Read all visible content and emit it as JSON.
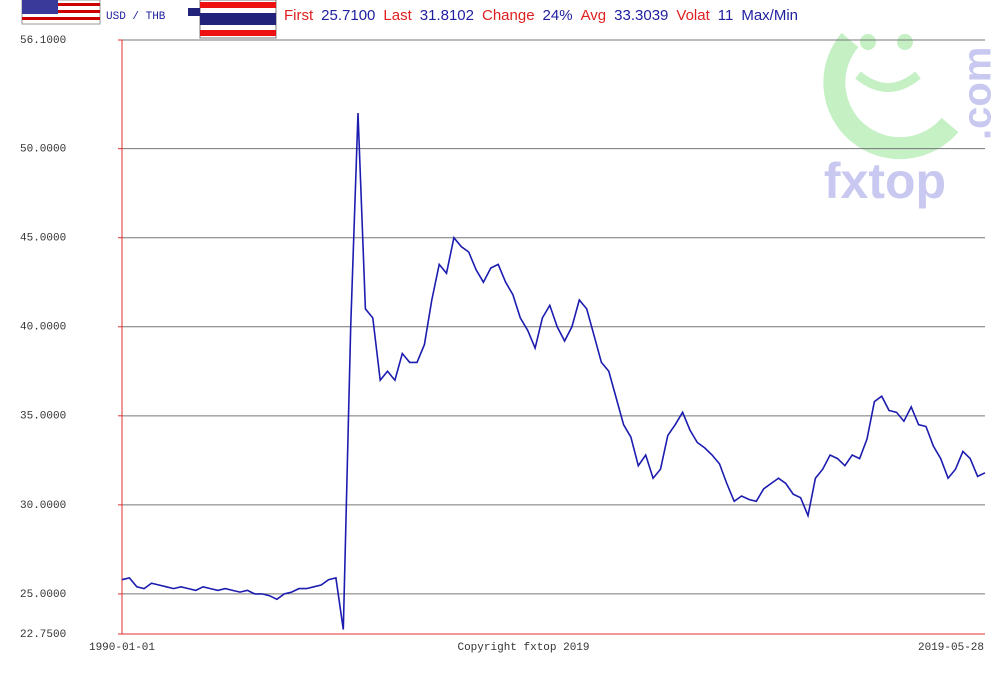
{
  "chart_data": {
    "type": "line",
    "title": "USD / THB",
    "stats": [
      {
        "label": "First",
        "value": "25.7100"
      },
      {
        "label": "Last",
        "value": "31.8102"
      },
      {
        "label": "Change",
        "value": "24%"
      },
      {
        "label": "Avg",
        "value": "33.3039"
      },
      {
        "label": "Volat",
        "value": "11"
      }
    ],
    "stats_suffix": "Max/Min",
    "x_start": "1990-01-01",
    "x_end": "2019-05-28",
    "copyright": "Copyright fxtop 2019",
    "watermark": "fxtop",
    "watermark_suffix": ".com",
    "color": "#1c1cb0",
    "grid": true,
    "ylim": [
      22.75,
      56.1
    ],
    "yticks": [
      {
        "value": 22.75,
        "label": "22.7500"
      },
      {
        "value": 25,
        "label": "25.0000"
      },
      {
        "value": 30,
        "label": "30.0000"
      },
      {
        "value": 35,
        "label": "35.0000"
      },
      {
        "value": 40,
        "label": "40.0000"
      },
      {
        "value": 45,
        "label": "45.0000"
      },
      {
        "value": 50,
        "label": "50.0000"
      },
      {
        "value": 56.1,
        "label": "56.1000"
      }
    ],
    "values": [
      25.8,
      25.9,
      25.4,
      25.3,
      25.6,
      25.5,
      25.4,
      25.3,
      25.4,
      25.3,
      25.2,
      25.4,
      25.3,
      25.2,
      25.3,
      25.2,
      25.1,
      25.2,
      25.0,
      25.0,
      24.9,
      24.7,
      25.0,
      25.1,
      25.3,
      25.3,
      25.4,
      25.5,
      25.8,
      25.9,
      23.0,
      40.0,
      52.0,
      41.0,
      40.5,
      37.0,
      37.5,
      37.0,
      38.5,
      38.0,
      38.0,
      39.0,
      41.5,
      43.5,
      43.0,
      45.0,
      44.5,
      44.2,
      43.2,
      42.5,
      43.3,
      43.5,
      42.5,
      41.8,
      40.5,
      39.8,
      38.8,
      40.5,
      41.2,
      40.0,
      39.2,
      40.0,
      41.5,
      41.0,
      39.5,
      38.0,
      37.5,
      36.0,
      34.5,
      33.8,
      32.2,
      32.8,
      31.5,
      32.0,
      33.9,
      34.5,
      35.2,
      34.2,
      33.5,
      33.2,
      32.8,
      32.3,
      31.2,
      30.2,
      30.5,
      30.3,
      30.2,
      30.9,
      31.2,
      31.5,
      31.2,
      30.6,
      30.4,
      29.4,
      31.5,
      32.0,
      32.8,
      32.6,
      32.2,
      32.8,
      32.6,
      33.7,
      35.8,
      36.1,
      35.3,
      35.2,
      34.7,
      35.5,
      34.5,
      34.4,
      33.3,
      32.6,
      31.5,
      32.0,
      33.0,
      32.6,
      31.6,
      31.8
    ]
  }
}
